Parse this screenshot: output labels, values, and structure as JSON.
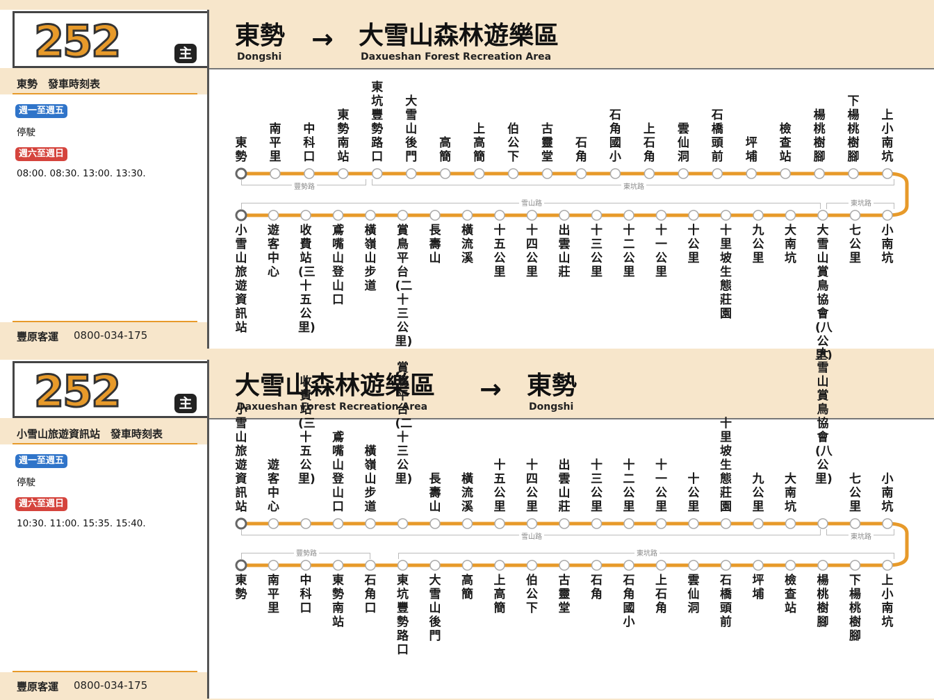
{
  "route_number": "252",
  "main_badge": "主",
  "company": "豐原客運",
  "phone": "0800-034-175",
  "arrow": "→",
  "panels": [
    {
      "origin_zh": "東勢",
      "origin_en": "Dongshi",
      "dest_zh": "大雪山森林遊樂區",
      "dest_en": "Daxueshan Forest Recreation Area",
      "schedule_title": "東勢　發車時刻表",
      "weekday_label": "週一至週五",
      "weekday_text": "停駛",
      "weekend_label": "週六至週日",
      "weekend_text": "08:00. 08:30. 13:00. 13:30.",
      "top_stations": [
        "東勢",
        "南平里",
        "中科口",
        "東勢南站",
        "東坑豐勢路口",
        "大雪山後門",
        "高簡",
        "上高簡",
        "伯公下",
        "古靈堂",
        "石角",
        "石角國小",
        "上石角",
        "雲仙洞",
        "石橋頭前",
        "坪埔",
        "檢查站",
        "楊桃樹腳",
        "下楊桃樹腳",
        "上小南坑"
      ],
      "bottom_stations": [
        "小雪山旅遊資訊站",
        "遊客中心",
        "收費站(三十五公里)",
        "鳶嘴山登山口",
        "橫嶺山步道",
        "賞鳥平台(二十三公里)",
        "長壽山",
        "橫流溪",
        "十五公里",
        "十四公里",
        "出雲山莊",
        "十三公里",
        "十二公里",
        "十一公里",
        "十公里",
        "十里坡生態莊園",
        "九公里",
        "大南坑",
        "大雪山賞鳥協會(八公里)",
        "七公里",
        "小南坑"
      ],
      "top_roads": [
        "豐勢路",
        "東坑路"
      ],
      "bottom_roads": [
        "雪山路",
        "東坑路"
      ]
    },
    {
      "origin_zh": "大雪山森林遊樂區",
      "origin_en": "Daxueshan Forest Recreation Area",
      "dest_zh": "東勢",
      "dest_en": "Dongshi",
      "schedule_title": "小雪山旅遊資訊站　發車時刻表",
      "weekday_label": "週一至週五",
      "weekday_text": "停駛",
      "weekend_label": "週六至週日",
      "weekend_text": "10:30. 11:00. 15:35. 15:40.",
      "top_stations": [
        "小雪山旅遊資訊站",
        "遊客中心",
        "收費站(三十五公里)",
        "鳶嘴山登山口",
        "橫嶺山步道",
        "賞鳥平台(二十三公里)",
        "長壽山",
        "橫流溪",
        "十五公里",
        "十四公里",
        "出雲山莊",
        "十三公里",
        "十二公里",
        "十一公里",
        "十公里",
        "十里坡生態莊園",
        "九公里",
        "大南坑",
        "大雪山賞鳥協會(八公里)",
        "七公里",
        "小南坑"
      ],
      "bottom_stations": [
        "東勢",
        "南平里",
        "中科口",
        "東勢南站",
        "石角口",
        "東坑豐勢路口",
        "大雪山後門",
        "高簡",
        "上高簡",
        "伯公下",
        "古靈堂",
        "石角",
        "石角國小",
        "上石角",
        "雲仙洞",
        "石橋頭前",
        "坪埔",
        "檢查站",
        "楊桃樹腳",
        "下楊桃樹腳",
        "上小南坑"
      ],
      "top_roads": [
        "雪山路",
        "東坑路"
      ],
      "bottom_roads": [
        "豐勢路",
        "東坑路"
      ]
    }
  ],
  "colors": {
    "line": "#e79a2a",
    "background": "#f7e6cb",
    "weekday_badge": "#2f74c9",
    "weekend_badge": "#d5443d"
  }
}
